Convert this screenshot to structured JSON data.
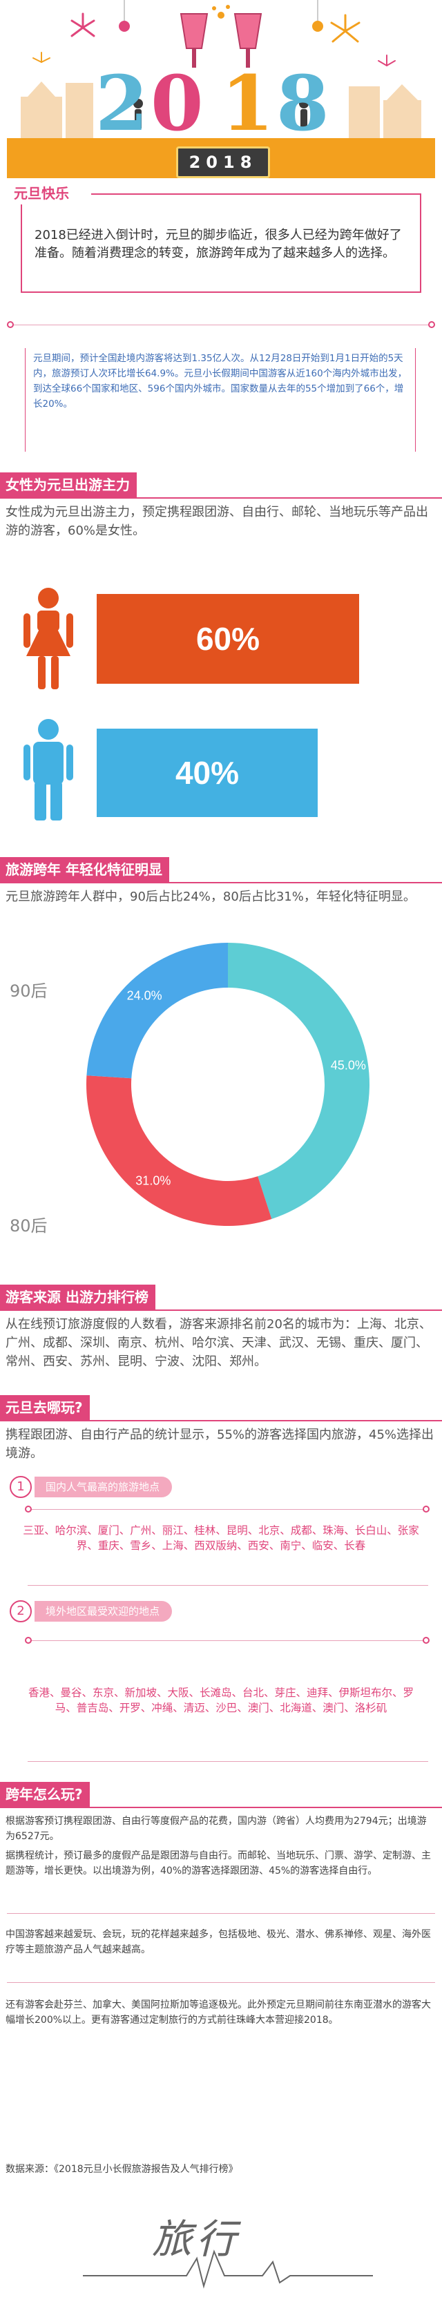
{
  "hero": {
    "digits": [
      "2",
      "0",
      "1",
      "8"
    ],
    "year_badge": "2018"
  },
  "intro": {
    "tag": "元旦快乐",
    "text": "2018已经进入倒计时，元旦的脚步临近，很多人已经为跨年做好了准备。随着消费理念的转变，旅游跨年成为了越来越多人的选择。"
  },
  "news": {
    "text": "元旦期间，预计全国赴境内游客将达到1.35亿人次。从12月28日开始到1月1日开始的5天内，旅游预订人次环比增长64.9%。元旦小长假期间中国游客从近160个海内外城市出发，到达全球66个国家和地区、596个国内外城市。国家数量从去年的55个增加到了66个，增长20%。"
  },
  "section_gender": {
    "title": "女性为元旦出游主力",
    "text": "女性成为元旦出游主力，预定携程跟团游、自由行、邮轮、当地玩乐等产品出游的游客，60%是女性。",
    "female_value": "60%",
    "male_value": "40%",
    "female_color": "#e2521e",
    "male_color": "#43b1e2"
  },
  "section_age": {
    "title": "旅游跨年 年轻化特征明显",
    "text": "元旦旅游跨年人群中，90后占比24%，80后占比31%，年轻化特征明显。",
    "label_90": "90后",
    "label_80": "80后"
  },
  "chart_data": {
    "type": "pie",
    "values": [
      45.0,
      31.0,
      24.0
    ],
    "labels": [
      "45.0%",
      "31.0%",
      "24.0%"
    ],
    "colors": [
      "#5dcdd4",
      "#ef4f58",
      "#4aa8ea"
    ]
  },
  "section_source": {
    "title": "游客来源 出游力排行榜",
    "text": "从在线预订旅游度假的人数看，游客来源排名前20名的城市为：上海、北京、广州、成都、深圳、南京、杭州、哈尔滨、天津、武汉、无锡、重庆、厦门、常州、西安、苏州、昆明、宁波、沈阳、郑州。"
  },
  "section_where": {
    "title": "元旦去哪玩?",
    "text": "携程跟团游、自由行产品的统计显示，55%的游客选择国内旅游，45%选择出境游。",
    "sub1_num": "1",
    "sub1_title": "国内人气最高的旅游地点",
    "domestic": "三亚、哈尔滨、厦门、广州、丽江、桂林、昆明、北京、成都、珠海、长白山、张家界、重庆、雪乡、上海、西双版纳、西安、南宁、临安、长春",
    "sub2_num": "2",
    "sub2_title": "境外地区最受欢迎的地点",
    "overseas": "香港、曼谷、东京、新加坡、大阪、长滩岛、台北、芽庄、迪拜、伊斯坦布尔、罗马、普吉岛、开罗、冲绳、清迈、沙巴、澳门、北海道、澳门、洛杉矶"
  },
  "section_how": {
    "title": "跨年怎么玩?",
    "p1": "根据游客预订携程跟团游、自由行等度假产品的花费，国内游（跨省）人均费用为2794元；出境游为6527元。",
    "p2": "据携程统计，预订最多的度假产品是跟团游与自由行。而邮轮、当地玩乐、门票、游学、定制游、主题游等，增长更快。以出境游为例，40%的游客选择跟团游、45%的游客选择自由行。",
    "p3": "中国游客越来越爱玩、会玩，玩的花样越来越多，包括极地、极光、潜水、佛系禅修、观星、海外医疗等主题旅游产品人气越来越高。",
    "p4": "还有游客会赴芬兰、加拿大、美国阿拉斯加等追逐极光。此外预定元旦期间前往东南亚潜水的游客大幅增长200%以上。更有游客通过定制旅行的方式前往珠峰大本营迎接2018。"
  },
  "source": {
    "text": "数据来源：《2018元旦小长假旅游报告及人气排行榜》",
    "logo": "旅行"
  }
}
